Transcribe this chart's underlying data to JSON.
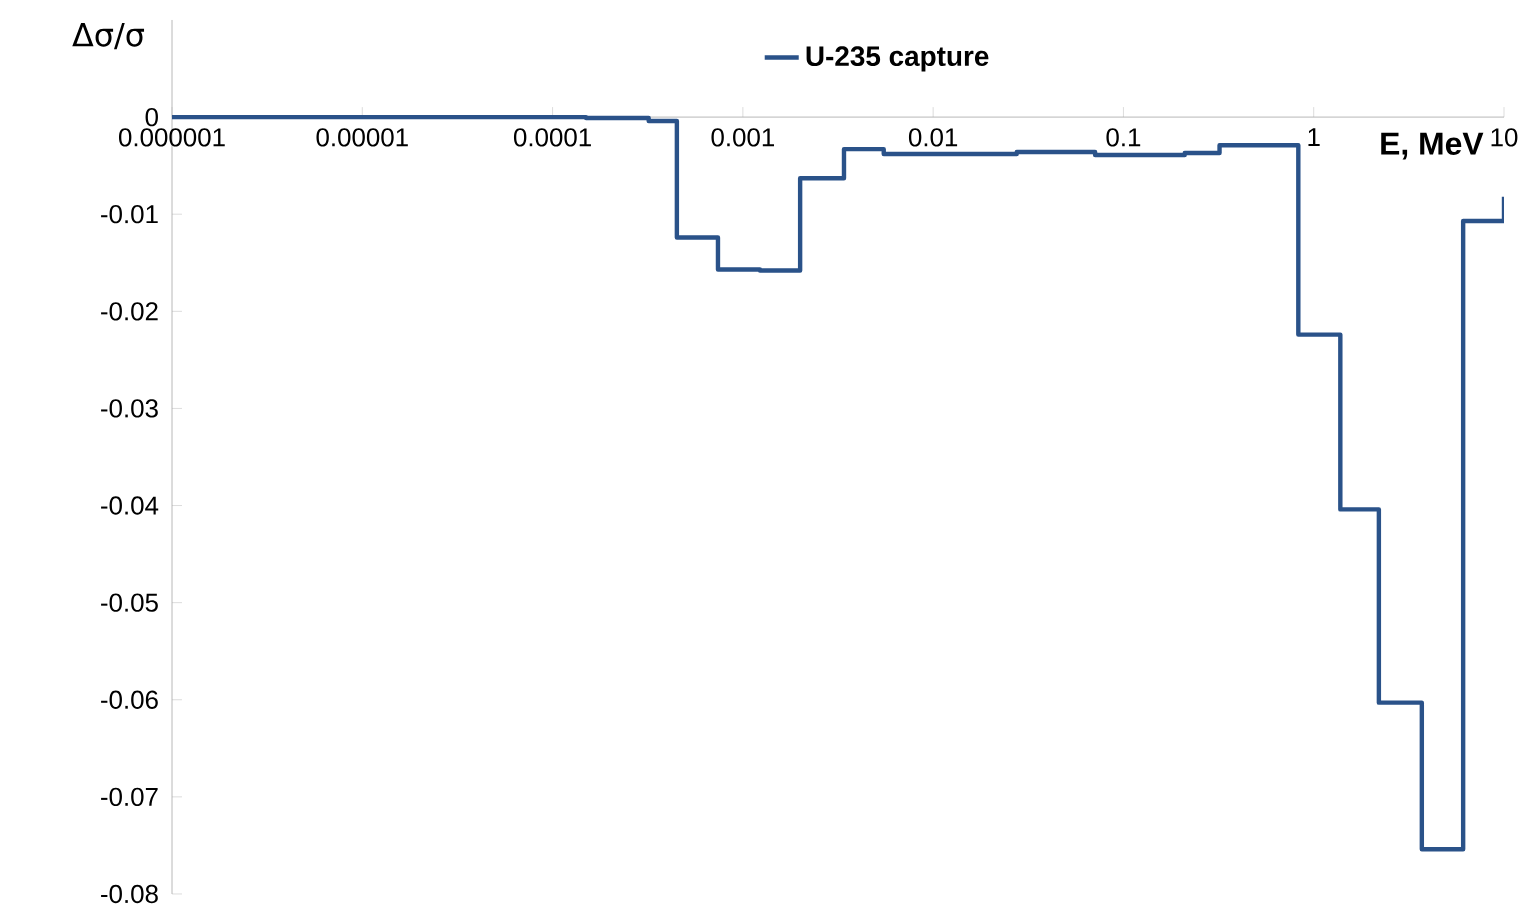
{
  "chart_data": {
    "type": "step",
    "xlabel": "E, MeV",
    "ylabel": "Δσ/σ",
    "log": "x",
    "legend": "top",
    "line_style": "solid",
    "xlim": [
      1e-06,
      10
    ],
    "ylim": [
      -0.08,
      0.01
    ],
    "xticks": [
      {
        "value": 1e-06,
        "label": "0.000001"
      },
      {
        "value": 1e-05,
        "label": "0.00001"
      },
      {
        "value": 0.0001,
        "label": "0.0001"
      },
      {
        "value": 0.001,
        "label": "0.001"
      },
      {
        "value": 0.01,
        "label": "0.01"
      },
      {
        "value": 0.1,
        "label": "0.1"
      },
      1,
      10
    ],
    "yticks": [
      0,
      -0.01,
      -0.02,
      -0.03,
      -0.04,
      -0.05,
      -0.06,
      -0.07,
      -0.08
    ],
    "series": [
      {
        "name": "U-235 capture",
        "color": "#2a5289",
        "x": [
          1e-06,
          0.00015,
          0.00032,
          0.00045,
          0.00074,
          0.00123,
          0.002,
          0.0034,
          0.0055,
          0.0275,
          0.071,
          0.21,
          0.32,
          0.83,
          1.38,
          2.2,
          3.7,
          6.1,
          10
        ],
        "values": [
          0,
          -0.0001,
          -0.0004,
          -0.0124,
          -0.0157,
          -0.0158,
          -0.0063,
          -0.0033,
          -0.0038,
          -0.0036,
          -0.0039,
          -0.0037,
          -0.0029,
          -0.0224,
          -0.0404,
          -0.0603,
          -0.0754,
          -0.0107,
          -0.0082
        ]
      }
    ]
  }
}
